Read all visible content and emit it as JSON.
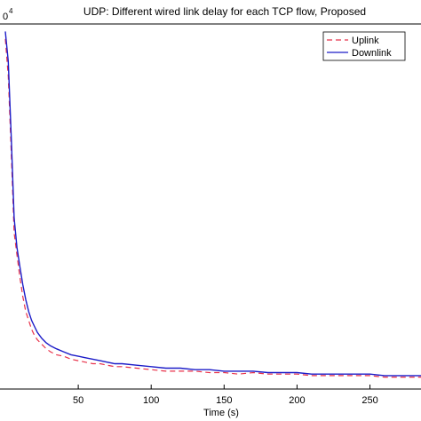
{
  "chart_data": {
    "type": "line",
    "title": "UDP: Different wired link delay for each TCP flow, Proposed",
    "xlabel": "Time (s)",
    "ylabel": "",
    "y_exponent_label": "0",
    "y_exponent_sup": "4",
    "xlim": [
      0,
      285
    ],
    "ylim": [
      0,
      2.45
    ],
    "x_ticks": [
      50,
      100,
      150,
      200,
      250
    ],
    "legend_position": "top-right",
    "grid": false,
    "series": [
      {
        "name": "Uplink",
        "color": "#e8324a",
        "style": "dashed",
        "x": [
          0,
          2,
          4,
          6,
          8,
          10,
          12,
          14,
          16,
          18,
          20,
          22,
          25,
          28,
          31,
          35,
          40,
          45,
          50,
          55,
          60,
          65,
          70,
          75,
          80,
          90,
          100,
          110,
          120,
          130,
          140,
          150,
          160,
          170,
          180,
          190,
          200,
          210,
          220,
          230,
          240,
          250,
          260,
          270,
          285
        ],
        "values": [
          2.35,
          2.1,
          1.6,
          1.05,
          0.9,
          0.75,
          0.62,
          0.52,
          0.46,
          0.4,
          0.36,
          0.33,
          0.3,
          0.27,
          0.25,
          0.23,
          0.22,
          0.2,
          0.19,
          0.18,
          0.17,
          0.17,
          0.16,
          0.15,
          0.15,
          0.14,
          0.13,
          0.12,
          0.12,
          0.12,
          0.11,
          0.11,
          0.1,
          0.11,
          0.1,
          0.1,
          0.1,
          0.09,
          0.09,
          0.09,
          0.09,
          0.09,
          0.08,
          0.08,
          0.08
        ]
      },
      {
        "name": "Downlink",
        "color": "#1c1cc8",
        "style": "solid",
        "x": [
          0,
          2,
          4,
          6,
          8,
          10,
          12,
          14,
          16,
          18,
          20,
          22,
          25,
          28,
          31,
          35,
          40,
          45,
          50,
          55,
          60,
          65,
          70,
          75,
          80,
          90,
          100,
          110,
          120,
          130,
          140,
          150,
          160,
          170,
          180,
          190,
          200,
          210,
          220,
          230,
          240,
          250,
          260,
          270,
          285
        ],
        "values": [
          2.4,
          2.2,
          1.7,
          1.15,
          0.95,
          0.82,
          0.7,
          0.6,
          0.52,
          0.46,
          0.42,
          0.38,
          0.34,
          0.31,
          0.29,
          0.27,
          0.25,
          0.23,
          0.22,
          0.21,
          0.2,
          0.19,
          0.18,
          0.17,
          0.17,
          0.16,
          0.15,
          0.14,
          0.14,
          0.13,
          0.13,
          0.12,
          0.12,
          0.12,
          0.11,
          0.11,
          0.11,
          0.1,
          0.1,
          0.1,
          0.1,
          0.1,
          0.09,
          0.09,
          0.09
        ]
      }
    ]
  }
}
